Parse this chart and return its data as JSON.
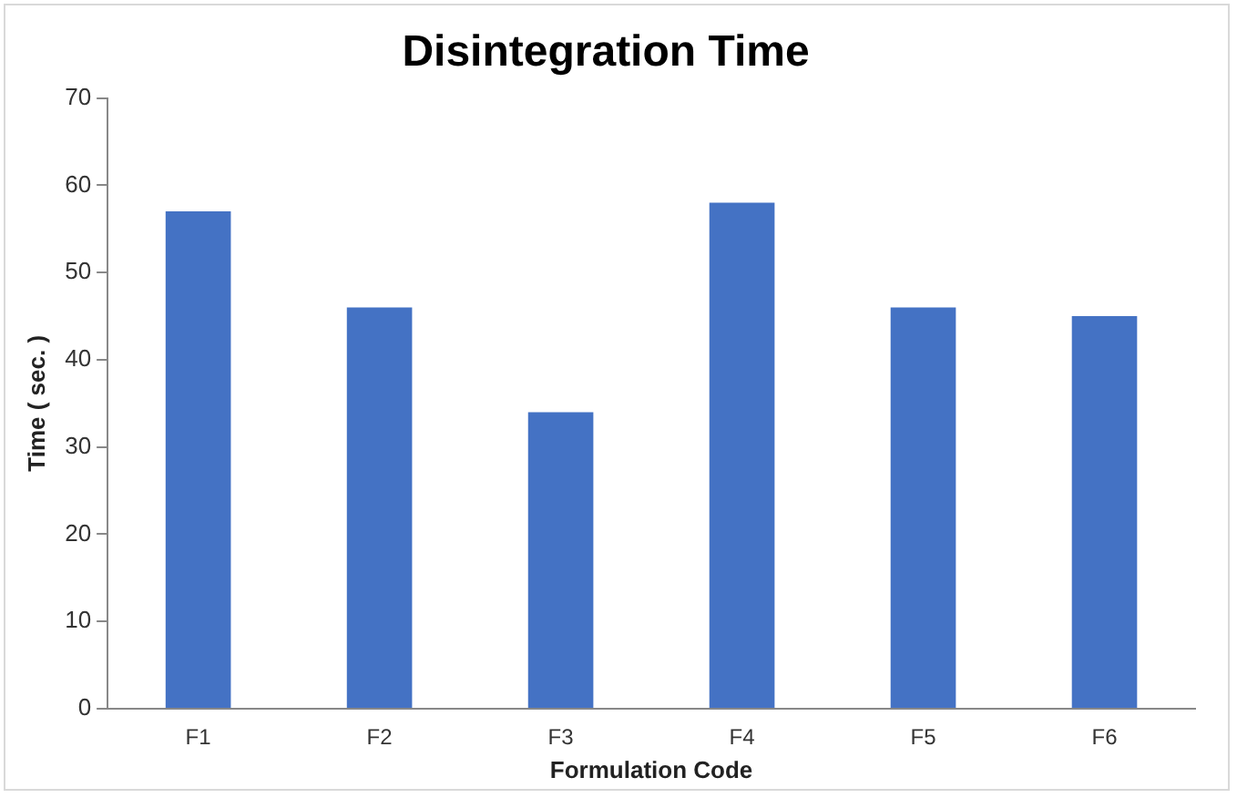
{
  "chart_data": {
    "type": "bar",
    "title": "Disintegration Time",
    "xlabel": "Formulation Code",
    "ylabel": "Time ( sec. )",
    "categories": [
      "F1",
      "F2",
      "F3",
      "F4",
      "F5",
      "F6"
    ],
    "values": [
      57,
      46,
      34,
      58,
      46,
      45
    ],
    "color": "#4472c4",
    "ylim": [
      0,
      70
    ],
    "yticks": [
      0,
      10,
      20,
      30,
      40,
      50,
      60,
      70
    ],
    "grid": false,
    "legend": false
  }
}
